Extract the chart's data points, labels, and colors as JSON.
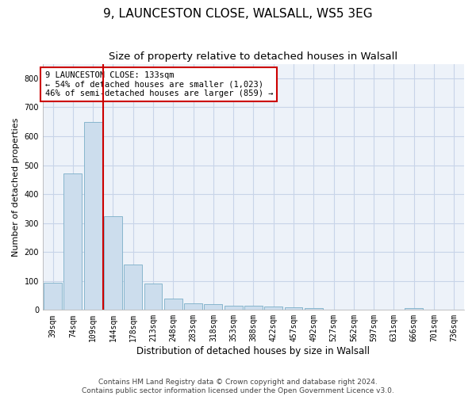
{
  "title1": "9, LAUNCESTON CLOSE, WALSALL, WS5 3EG",
  "title2": "Size of property relative to detached houses in Walsall",
  "xlabel": "Distribution of detached houses by size in Walsall",
  "ylabel": "Number of detached properties",
  "categories": [
    "39sqm",
    "74sqm",
    "109sqm",
    "144sqm",
    "178sqm",
    "213sqm",
    "248sqm",
    "283sqm",
    "318sqm",
    "353sqm",
    "388sqm",
    "422sqm",
    "457sqm",
    "492sqm",
    "527sqm",
    "562sqm",
    "597sqm",
    "631sqm",
    "666sqm",
    "701sqm",
    "736sqm"
  ],
  "values": [
    95,
    470,
    648,
    323,
    157,
    92,
    40,
    23,
    20,
    14,
    15,
    11,
    9,
    7,
    1,
    1,
    0,
    0,
    7,
    0,
    0
  ],
  "bar_color": "#ccdded",
  "bar_edgecolor": "#7aaec8",
  "annotation_text": "9 LAUNCESTON CLOSE: 133sqm\n← 54% of detached houses are smaller (1,023)\n46% of semi-detached houses are larger (859) →",
  "annotation_box_color": "#ffffff",
  "annotation_box_edgecolor": "#cc0000",
  "redline_color": "#cc0000",
  "ylim": [
    0,
    850
  ],
  "yticks": [
    0,
    100,
    200,
    300,
    400,
    500,
    600,
    700,
    800
  ],
  "grid_color": "#c8d4e8",
  "footer1": "Contains HM Land Registry data © Crown copyright and database right 2024.",
  "footer2": "Contains public sector information licensed under the Open Government Licence v3.0.",
  "bg_color": "#ffffff",
  "plot_bg_color": "#edf2f9",
  "title1_fontsize": 11,
  "title2_fontsize": 9.5,
  "xlabel_fontsize": 8.5,
  "ylabel_fontsize": 8,
  "tick_fontsize": 7,
  "annot_fontsize": 7.5,
  "footer_fontsize": 6.5
}
